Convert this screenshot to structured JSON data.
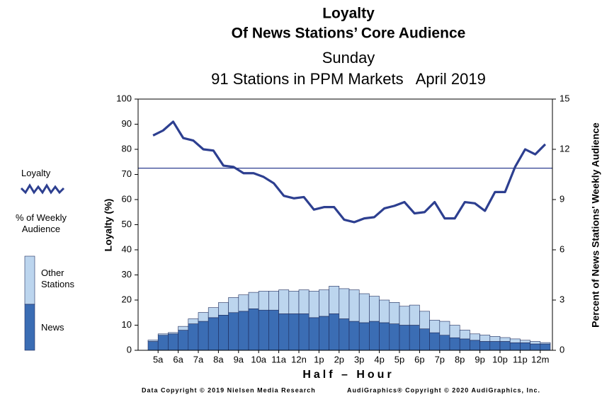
{
  "chart_data": {
    "type": "bar_line",
    "title": "Loyalty",
    "subtitle": "Of News Stations’ Core Audience",
    "subtitle2": "Sunday",
    "subtitle3": "91 Stations in PPM Markets   April 2019",
    "xlabel": "Half – Hour",
    "ylabel": "Loyalty (%)",
    "y2label": "Percent of News Stations' Weekly Audience",
    "legend_heading": "% of Weekly Audience",
    "footer_left": "Data Copyright © 2019 Nielsen Media Research",
    "footer_right": "AudiGraphics® Copyright © 2020 AudiGraphics, Inc.",
    "categories": [
      "5a",
      null,
      "6a",
      null,
      "7a",
      null,
      "8a",
      null,
      "9a",
      null,
      "10a",
      null,
      "11a",
      null,
      "12n",
      null,
      "1p",
      null,
      "2p",
      null,
      "3p",
      null,
      "4p",
      null,
      "5p",
      null,
      "6p",
      null,
      "7p",
      null,
      "8p",
      null,
      "9p",
      null,
      "10p",
      null,
      "11p",
      null,
      "12m",
      null
    ],
    "ylim": [
      0,
      100
    ],
    "yticks": [
      0,
      10,
      20,
      30,
      40,
      50,
      60,
      70,
      80,
      90,
      100
    ],
    "y2lim": [
      0,
      15
    ],
    "y2ticks": [
      0,
      3,
      6,
      9,
      12,
      15
    ],
    "reference_line": 72.5,
    "series": [
      {
        "name": "News",
        "color": "#3b6db4",
        "axis": "y2",
        "values": [
          0.53,
          0.9,
          0.98,
          1.2,
          1.58,
          1.73,
          1.95,
          2.1,
          2.25,
          2.33,
          2.48,
          2.4,
          2.4,
          2.18,
          2.18,
          2.18,
          1.95,
          2.03,
          2.18,
          1.88,
          1.73,
          1.65,
          1.73,
          1.65,
          1.58,
          1.5,
          1.5,
          1.28,
          1.05,
          0.9,
          0.75,
          0.68,
          0.6,
          0.53,
          0.53,
          0.53,
          0.45,
          0.45,
          0.38,
          0.38
        ]
      },
      {
        "name": "Other Stations",
        "color": "#bcd5ee",
        "axis": "y2",
        "values": [
          0.08,
          0.08,
          0.08,
          0.23,
          0.3,
          0.53,
          0.6,
          0.75,
          0.9,
          0.98,
          0.98,
          1.13,
          1.13,
          1.43,
          1.35,
          1.43,
          1.58,
          1.58,
          1.65,
          1.8,
          1.88,
          1.73,
          1.5,
          1.35,
          1.28,
          1.13,
          1.2,
          1.05,
          0.75,
          0.83,
          0.75,
          0.53,
          0.38,
          0.38,
          0.3,
          0.23,
          0.23,
          0.15,
          0.15,
          0.08
        ]
      },
      {
        "name": "Loyalty",
        "color": "#2d3f90",
        "axis": "y",
        "values": [
          85.5,
          87.5,
          91,
          84.5,
          83.5,
          80,
          79.5,
          73.5,
          73,
          70.5,
          70.5,
          69,
          66.5,
          61.5,
          60.5,
          61,
          56,
          57,
          57,
          52,
          51,
          52.5,
          53,
          56.5,
          57.5,
          59,
          54.5,
          55,
          59,
          52.5,
          52.5,
          59,
          58.5,
          55.5,
          63,
          63,
          73,
          80,
          78,
          82
        ]
      }
    ]
  }
}
